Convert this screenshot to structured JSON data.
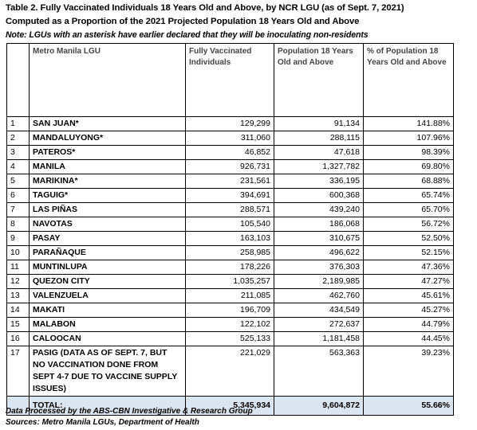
{
  "header": {
    "title_line1": "Table 2. Fully Vaccinated Individuals 18 Years Old and Above, by NCR LGU (as of Sept. 7, 2021)",
    "title_line2": "Computed as a Proportion of the 2021 Projected Population 18 Years Old and Above",
    "note": "Note: LGUs with an asterisk have earlier declared that they will be inoculating non-residents"
  },
  "table": {
    "columns": [
      "Metro Manila LGU",
      "Fully Vaccinated Individuals",
      "Population 18 Years Old and Above",
      "% of Population 18 Years Old and Above"
    ],
    "rows": [
      [
        "1",
        "SAN JUAN*",
        "129,299",
        "91,134",
        "141.88%"
      ],
      [
        "2",
        "MANDALUYONG*",
        "311,060",
        "288,115",
        "107.96%"
      ],
      [
        "3",
        "PATEROS*",
        "46,852",
        "47,618",
        "98.39%"
      ],
      [
        "4",
        "MANILA",
        "926,731",
        "1,327,782",
        "69.80%"
      ],
      [
        "5",
        "MARIKINA*",
        "231,561",
        "336,195",
        "68.88%"
      ],
      [
        "6",
        "TAGUIG*",
        "394,691",
        "600,368",
        "65.74%"
      ],
      [
        "7",
        "LAS PIÑAS",
        "288,571",
        "439,240",
        "65.70%"
      ],
      [
        "8",
        "NAVOTAS",
        "105,540",
        "186,068",
        "56.72%"
      ],
      [
        "9",
        "PASAY",
        "163,103",
        "310,675",
        "52.50%"
      ],
      [
        "10",
        "PARAÑAQUE",
        "258,985",
        "496,622",
        "52.15%"
      ],
      [
        "11",
        "MUNTINLUPA",
        "178,226",
        "376,303",
        "47.36%"
      ],
      [
        "12",
        "QUEZON CITY",
        "1,035,257",
        "2,189,985",
        "47.27%"
      ],
      [
        "13",
        "VALENZUELA",
        "211,085",
        "462,760",
        "45.61%"
      ],
      [
        "14",
        "MAKATI",
        "196,709",
        "434,549",
        "45.27%"
      ],
      [
        "15",
        "MALABON",
        "122,102",
        "272,637",
        "44.79%"
      ],
      [
        "16",
        "CALOOCAN",
        "525,133",
        "1,181,458",
        "44.45%"
      ],
      [
        "17",
        "PASIG (DATA AS OF SEPT. 7, BUT NO VACCINATION DONE FROM SEPT 4-7 DUE TO VACCINE SUPPLY ISSUES)",
        "221,029",
        "563,363",
        "39.23%"
      ]
    ],
    "total": [
      "TOTAL:",
      "5,345,934",
      "9,604,872",
      "55.66%"
    ]
  },
  "footer": {
    "line1": "Data Processed by the ABS-CBN Investigative & Research Group",
    "line2": "Sources: Metro Manila LGUs, Department of Health"
  }
}
